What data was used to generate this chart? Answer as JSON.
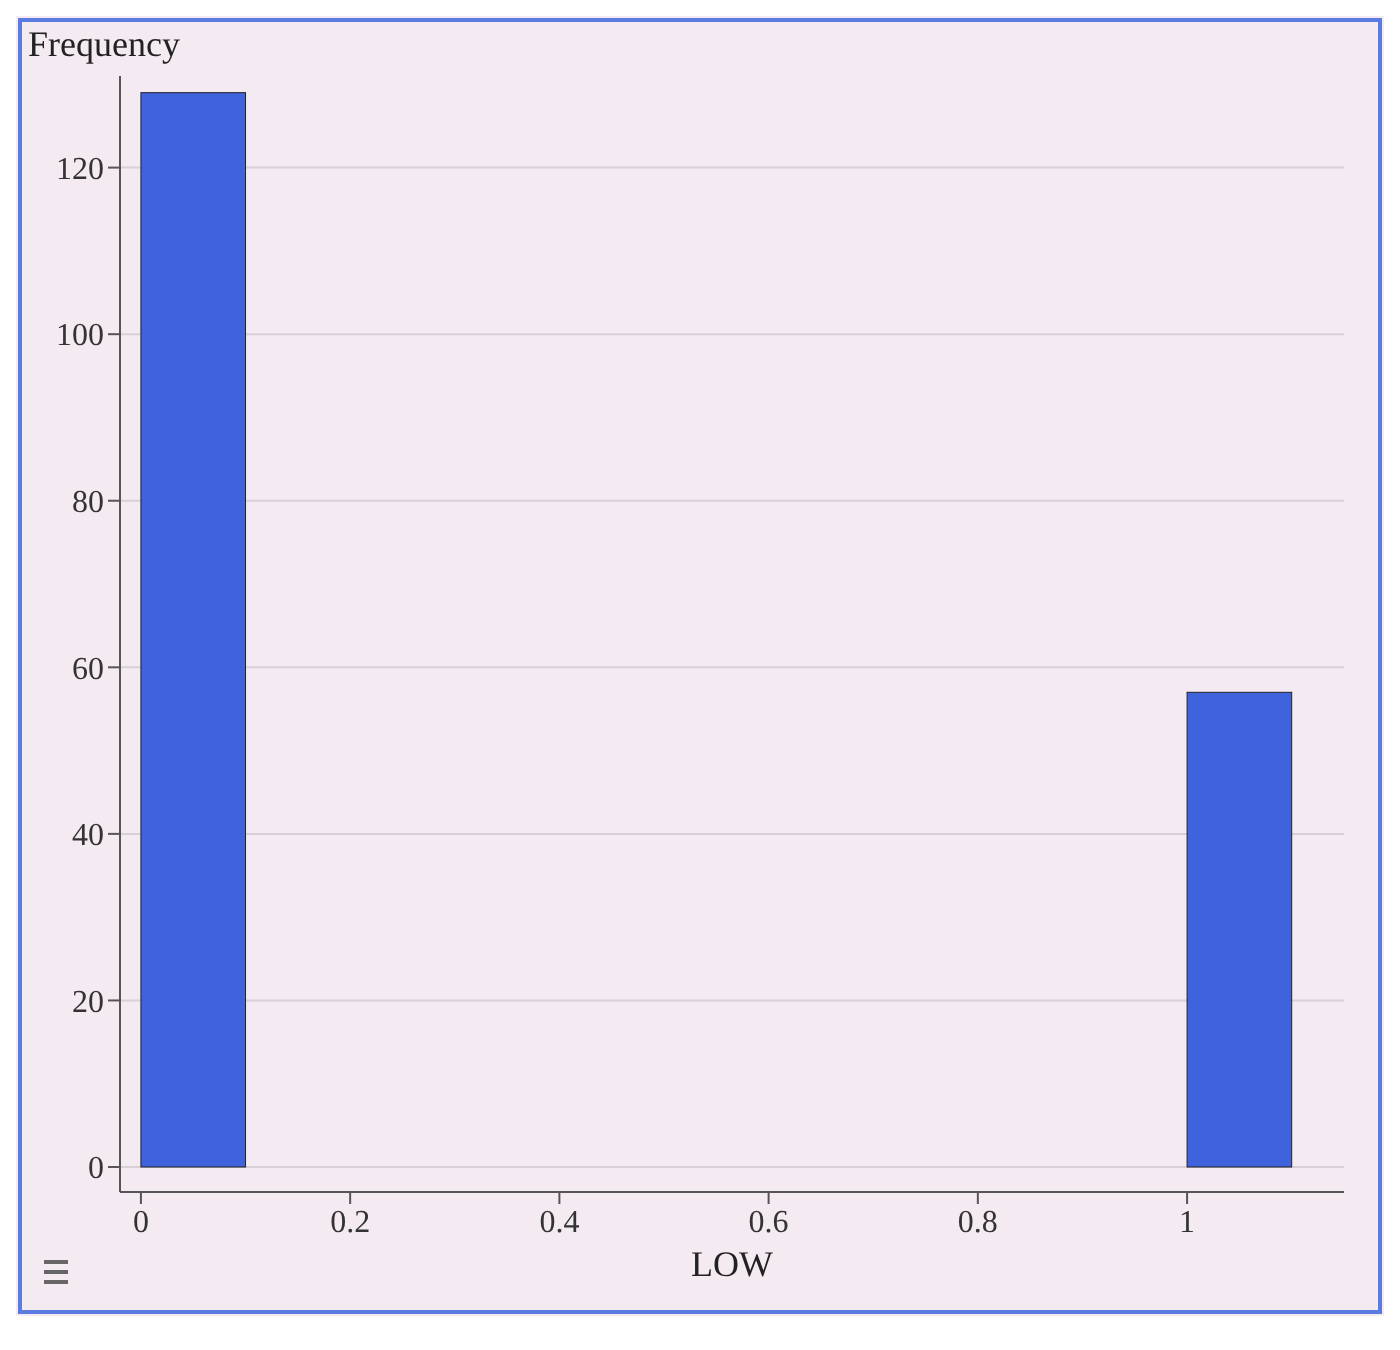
{
  "chart_data": {
    "type": "histogram",
    "xlabel": "LOW",
    "ylabel": "Frequency",
    "bins": [
      0,
      0.1,
      0.2,
      0.3,
      0.4,
      0.5,
      0.6,
      0.7,
      0.8,
      0.9,
      1,
      1.1
    ],
    "values": [
      129,
      0,
      0,
      0,
      0,
      0,
      0,
      0,
      0,
      0,
      57
    ],
    "color": "#3f62dd",
    "xlim": [
      -0.02,
      1.15
    ],
    "ylim": [
      -3,
      131
    ],
    "xticks": [
      0,
      0.2,
      0.4,
      0.6,
      0.8,
      1
    ],
    "yticks": [
      0,
      20,
      40,
      60,
      80,
      100,
      120
    ],
    "grid": "y"
  }
}
